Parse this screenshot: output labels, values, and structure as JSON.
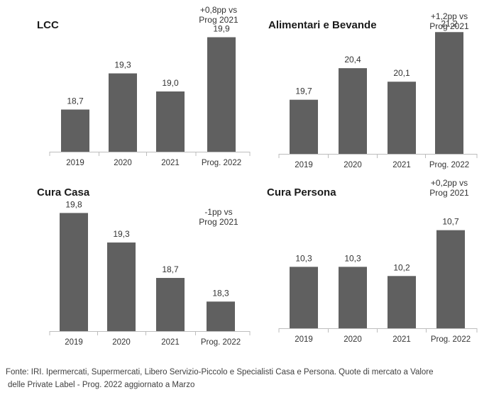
{
  "chart_data": [
    {
      "type": "bar",
      "title": "LCC",
      "categories": [
        "2019",
        "2020",
        "2021",
        "Prog. 2022"
      ],
      "values": [
        18.7,
        19.3,
        19.0,
        19.9
      ],
      "value_labels": [
        "18,7",
        "19,3",
        "19,0",
        "19,9"
      ],
      "annotation": [
        "+0,8pp vs",
        "Prog 2021"
      ],
      "bar_color": "#606060"
    },
    {
      "type": "bar",
      "title": "Alimentari  e Bevande",
      "categories": [
        "2019",
        "2020",
        "2021",
        "Prog. 2022"
      ],
      "values": [
        19.7,
        20.4,
        20.1,
        21.2
      ],
      "value_labels": [
        "19,7",
        "20,4",
        "20,1",
        "21,2"
      ],
      "annotation": [
        "+1,2pp vs",
        "Prog 2021"
      ],
      "bar_color": "#606060"
    },
    {
      "type": "bar",
      "title": "Cura Casa",
      "categories": [
        "2019",
        "2020",
        "2021",
        "Prog. 2022"
      ],
      "values": [
        19.8,
        19.3,
        18.7,
        18.3
      ],
      "value_labels": [
        "19,8",
        "19,3",
        "18,7",
        "18,3"
      ],
      "annotation": [
        "-1pp vs",
        "Prog 2021"
      ],
      "bar_color": "#606060"
    },
    {
      "type": "bar",
      "title": "Cura Persona",
      "categories": [
        "2019",
        "2020",
        "2021",
        "Prog. 2022"
      ],
      "values": [
        10.3,
        10.3,
        10.2,
        10.7
      ],
      "value_labels": [
        "10,3",
        "10,3",
        "10,2",
        "10,7"
      ],
      "annotation": [
        "+0,2pp vs",
        "Prog 2021"
      ],
      "bar_color": "#606060"
    }
  ],
  "source": {
    "line1": "Fonte: IRI. Ipermercati, Supermercati, Libero Servizio-Piccolo e Specialisti Casa e Persona.   Quote di mercato a Valore",
    "line2": "delle Private Label - Prog. 2022 aggiornato a Marzo"
  }
}
